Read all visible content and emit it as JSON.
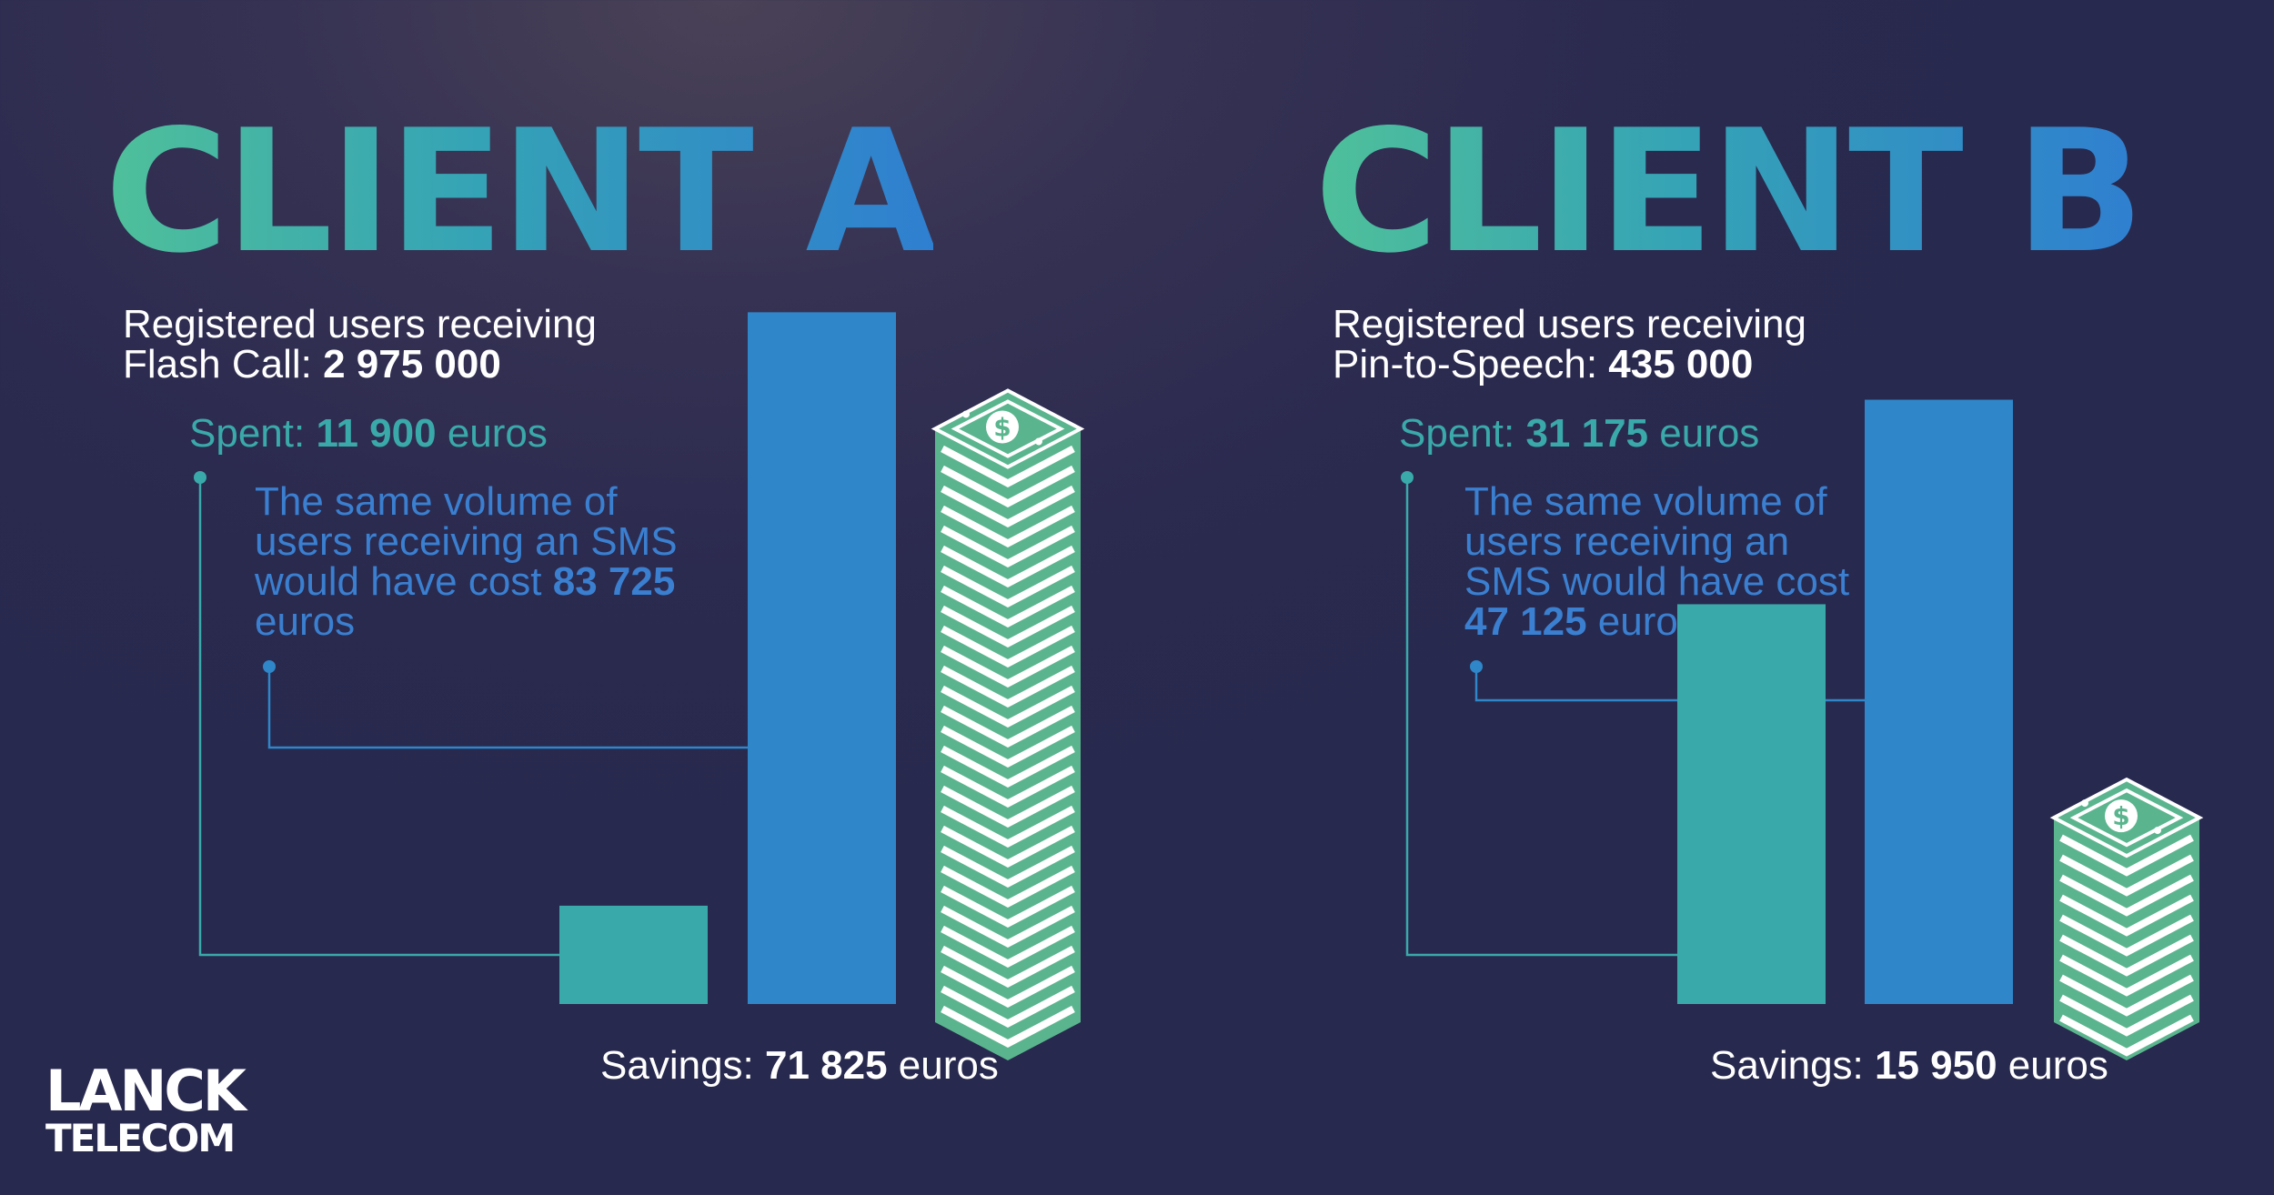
{
  "colors": {
    "spent": "#3aa9a9",
    "sms": "#2f86c8",
    "sms_text": "#3a7fd0",
    "money": "#5ab58e",
    "title_gradient": [
      "#4fc09a",
      "#2f7fd0"
    ]
  },
  "clients": [
    {
      "title": "CLIENT A",
      "registered_line1": "Registered users receiving",
      "registered_line2_prefix": "Flash Call: ",
      "registered_value": "2 975 000",
      "spent_prefix": "Spent: ",
      "spent_value": "11 900",
      "spent_suffix": " euros",
      "sms_line1": "The same volume of",
      "sms_line2": "users receiving an SMS",
      "sms_line3_prefix": "would have cost ",
      "sms_value": "83 725",
      "sms_line4": "euros",
      "savings_prefix": "Savings: ",
      "savings_value": "71 825",
      "savings_suffix": " euros"
    },
    {
      "title": "CLIENT B",
      "registered_line1": "Registered users receiving",
      "registered_line2_prefix": "Pin-to-Speech: ",
      "registered_value": "435 000",
      "spent_prefix": "Spent: ",
      "spent_value": "31 175",
      "spent_suffix": " euros",
      "sms_line1": "The same volume of",
      "sms_line2": "users receiving an",
      "sms_line3": "SMS would have cost",
      "sms_value": "47 125",
      "sms_suffix": " euros",
      "savings_prefix": "Savings: ",
      "savings_value": "15 950",
      "savings_suffix": " euros"
    }
  ],
  "chart_data": [
    {
      "type": "bar",
      "title": "CLIENT A",
      "categories": [
        "Spent",
        "SMS cost",
        "Savings"
      ],
      "values": [
        11900,
        83725,
        71825
      ],
      "unit": "euros"
    },
    {
      "type": "bar",
      "title": "CLIENT B",
      "categories": [
        "Spent",
        "SMS cost",
        "Savings"
      ],
      "values": [
        31175,
        47125,
        15950
      ],
      "unit": "euros"
    }
  ],
  "logo": {
    "line1": "LANCK",
    "line2": "TELECOM"
  }
}
